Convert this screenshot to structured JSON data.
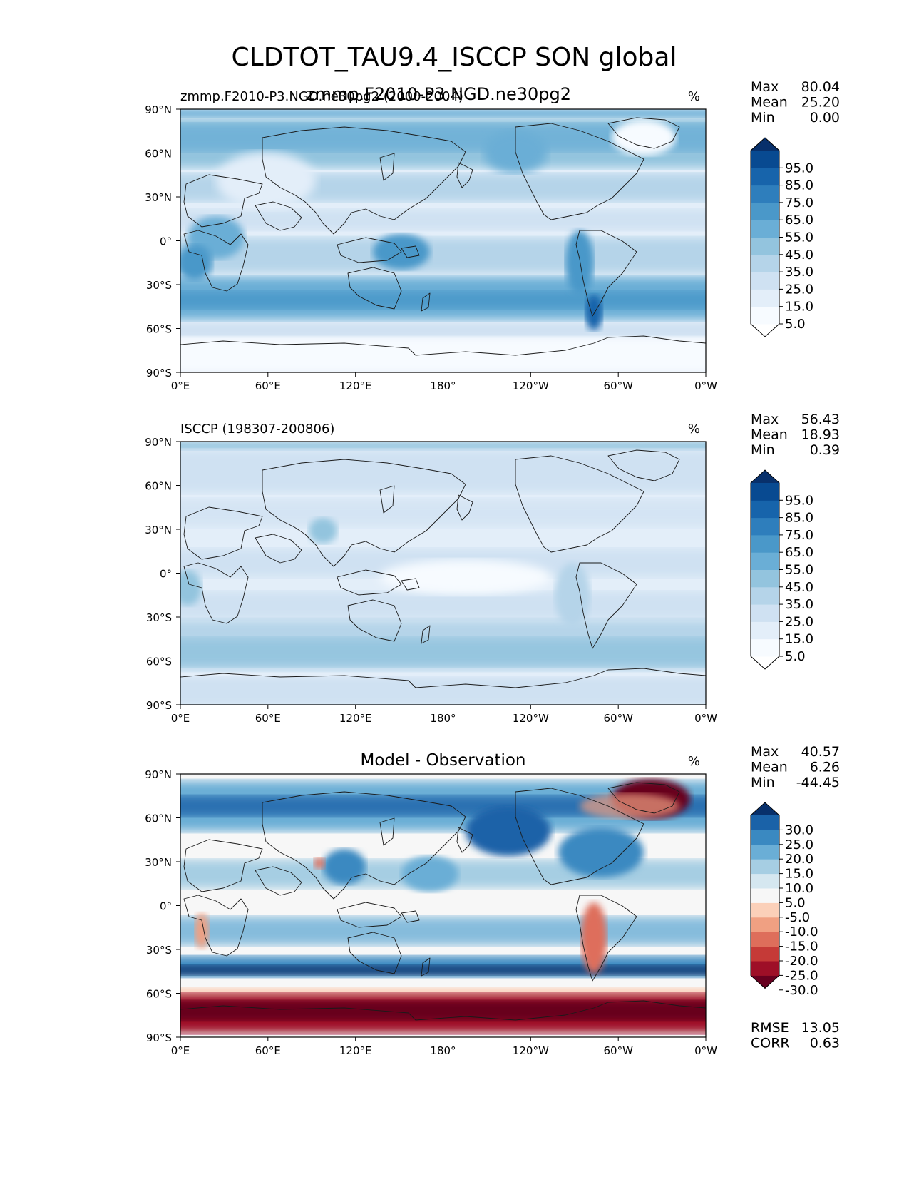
{
  "figure": {
    "title": "CLDTOT_TAU9.4_ISCCP SON global",
    "overlap_title": "zmmp.F2010-P3.NGD.ne30pg2"
  },
  "chart_data": [
    {
      "type": "heatmap",
      "id": "test",
      "left_title": "zmmp.F2010-P3.NGD.ne30pg2 (2000-2004)",
      "center_title": "",
      "units": "%",
      "stats": [
        {
          "label": "Max",
          "value": "80.04"
        },
        {
          "label": "Mean",
          "value": "25.20"
        },
        {
          "label": "Min",
          "value": "0.00"
        }
      ],
      "colorbar": {
        "colors": [
          "#ffffff",
          "#f7fbff",
          "#e3eef9",
          "#cfe1f2",
          "#b5d4e9",
          "#93c4de",
          "#6aaed6",
          "#4a98c9",
          "#2e7ebc",
          "#1764ab",
          "#084a91",
          "#08306b"
        ],
        "labels": [
          "95.0",
          "85.0",
          "75.0",
          "65.0",
          "55.0",
          "45.0",
          "35.0",
          "25.0",
          "15.0",
          "5.0"
        ]
      }
    },
    {
      "type": "heatmap",
      "id": "reference",
      "left_title": "ISCCP (198307-200806)",
      "center_title": "",
      "units": "%",
      "stats": [
        {
          "label": "Max",
          "value": "56.43"
        },
        {
          "label": "Mean",
          "value": "18.93"
        },
        {
          "label": "Min",
          "value": "0.39"
        }
      ],
      "colorbar": {
        "colors": [
          "#ffffff",
          "#f7fbff",
          "#e3eef9",
          "#cfe1f2",
          "#b5d4e9",
          "#93c4de",
          "#6aaed6",
          "#4a98c9",
          "#2e7ebc",
          "#1764ab",
          "#084a91",
          "#08306b"
        ],
        "labels": [
          "95.0",
          "85.0",
          "75.0",
          "65.0",
          "55.0",
          "45.0",
          "35.0",
          "25.0",
          "15.0",
          "5.0"
        ]
      }
    },
    {
      "type": "heatmap",
      "id": "difference",
      "left_title": "",
      "center_title": "Model - Observation",
      "units": "%",
      "stats": [
        {
          "label": "Max",
          "value": "40.57"
        },
        {
          "label": "Mean",
          "value": "6.26"
        },
        {
          "label": "Min",
          "value": "-44.45"
        }
      ],
      "extra_stats": [
        {
          "label": "RMSE",
          "value": "13.05"
        },
        {
          "label": "CORR",
          "value": "0.63"
        }
      ],
      "colorbar": {
        "colors": [
          "#67001f",
          "#9e0f27",
          "#c53a37",
          "#de6e5b",
          "#f0a082",
          "#fbd0b9",
          "#f7f7f7",
          "#d5e7f0",
          "#a6cee3",
          "#6aaed6",
          "#3a89c1",
          "#1a62a8",
          "#08306b"
        ],
        "labels": [
          "30.0",
          "25.0",
          "20.0",
          "15.0",
          "10.0",
          "5.0",
          "-5.0",
          "-10.0",
          "-15.0",
          "-20.0",
          "-25.0",
          "-30.0"
        ]
      }
    }
  ],
  "axes": {
    "yticks": [
      "90°N",
      "60°N",
      "30°N",
      "0°",
      "30°S",
      "60°S",
      "90°S"
    ],
    "xticks": [
      "0°E",
      "60°E",
      "120°E",
      "180°",
      "120°W",
      "60°W",
      "0°W"
    ]
  }
}
